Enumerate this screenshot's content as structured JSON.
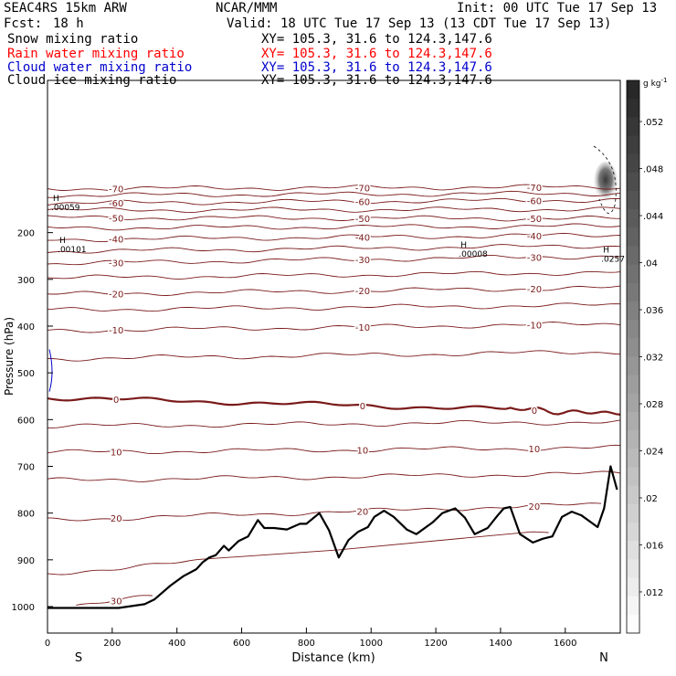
{
  "header": {
    "model": "SEAC4RS 15km ARW",
    "org": "NCAR/MMM",
    "init": "Init: 00 UTC Tue 17 Sep 13",
    "fcst_label": "Fcst:",
    "fcst_value": "18 h",
    "valid": "Valid: 18 UTC Tue 17 Sep 13 (13 CDT Tue 17 Sep 13)"
  },
  "fields": [
    {
      "label": "Snow mixing ratio",
      "xy": "XY= 105.3, 31.6 to 124.3,147.6",
      "color": "#000000"
    },
    {
      "label": "Rain water mixing ratio",
      "xy": "XY= 105.3, 31.6 to 124.3,147.6",
      "color": "#ff0000"
    },
    {
      "label": "Cloud water mixing ratio",
      "xy": "XY= 105.3, 31.6 to 124.3,147.6",
      "color": "#0000cc"
    },
    {
      "label": "Cloud ice mixing ratio",
      "xy": "XY= 105.3, 31.6 to 124.3,147.6",
      "color": "#000000"
    }
  ],
  "chart_data": {
    "type": "contour",
    "xlabel": "Distance (km)",
    "ylabel": "Pressure (hPa)",
    "xlim": [
      0,
      1770
    ],
    "ylim": [
      1050,
      100
    ],
    "x_ticks": [
      0,
      200,
      400,
      600,
      800,
      1000,
      1200,
      1400,
      1600
    ],
    "y_ticks": [
      200,
      300,
      400,
      500,
      600,
      700,
      800,
      900,
      1000
    ],
    "end_labels": {
      "left": "S",
      "right": "N"
    },
    "contour_color": "#7a1a1a",
    "temperature_contours": [
      {
        "value": -70,
        "label": "-70",
        "p_left": 106,
        "p_right": 102
      },
      {
        "value": -65,
        "p_left": 120,
        "p_right": 116
      },
      {
        "value": -60,
        "label": "-60",
        "p_left": 137,
        "p_right": 130
      },
      {
        "value": -55,
        "p_left": 152,
        "p_right": 150
      },
      {
        "value": -50,
        "label": "-50",
        "p_left": 168,
        "p_right": 170
      },
      {
        "value": -45,
        "p_left": 190,
        "p_right": 186
      },
      {
        "value": -40,
        "label": "-40",
        "p_left": 215,
        "p_right": 205
      },
      {
        "value": -35,
        "p_left": 240,
        "p_right": 228
      },
      {
        "value": -30,
        "label": "-30",
        "p_left": 266,
        "p_right": 250
      },
      {
        "value": -25,
        "p_left": 297,
        "p_right": 285
      },
      {
        "value": -20,
        "label": "-20",
        "p_left": 332,
        "p_right": 318
      },
      {
        "value": -15,
        "p_left": 365,
        "p_right": 355
      },
      {
        "value": -10,
        "label": "-10",
        "p_left": 410,
        "p_right": 395
      },
      {
        "value": -5,
        "p_left": 470,
        "p_right": 455
      },
      {
        "value": 0,
        "label": "0",
        "p_left": 553,
        "p_right": 584,
        "bold": true
      },
      {
        "value": 5,
        "p_left": 614,
        "p_right": 605
      },
      {
        "value": 10,
        "label": "10",
        "p_left": 670,
        "p_right": 660
      },
      {
        "value": 15,
        "p_left": 730,
        "p_right": 715
      },
      {
        "value": 20,
        "label": "20",
        "p_left": 815,
        "p_right": 780
      },
      {
        "value": 25,
        "p_left": 930,
        "p_right": 830
      },
      {
        "value": 30,
        "label": "30",
        "p_left": 1003,
        "p_right": 870
      }
    ],
    "terrain_surface": {
      "distance_km": [
        0,
        220,
        300,
        330,
        380,
        420,
        460,
        480,
        500,
        520,
        545,
        560,
        590,
        620,
        650,
        670,
        700,
        740,
        780,
        800,
        840,
        870,
        900,
        930,
        960,
        990,
        1010,
        1040,
        1070,
        1110,
        1140,
        1190,
        1220,
        1260,
        1290,
        1320,
        1360,
        1390,
        1410,
        1430,
        1460,
        1500,
        1530,
        1560,
        1590,
        1620,
        1650,
        1680,
        1700,
        1720,
        1740,
        1760
      ],
      "pressure_hpa": [
        1003,
        1003,
        995,
        985,
        955,
        935,
        920,
        905,
        895,
        890,
        870,
        880,
        860,
        850,
        815,
        832,
        832,
        835,
        823,
        823,
        800,
        837,
        895,
        858,
        840,
        830,
        808,
        795,
        808,
        835,
        845,
        820,
        800,
        790,
        810,
        845,
        832,
        806,
        790,
        787,
        845,
        863,
        855,
        850,
        808,
        797,
        805,
        820,
        830,
        790,
        700,
        750
      ]
    },
    "maxima": [
      {
        "label": "H",
        "value": ".00059",
        "x_km": 0,
        "p_hpa": 150
      },
      {
        "label": "H",
        "value": ".00101",
        "x_km": 20,
        "p_hpa": 240
      },
      {
        "label": "H",
        "value": ".00008",
        "x_km": 1260,
        "p_hpa": 250
      },
      {
        "label": "H",
        "value": ".0257",
        "x_km": 1700,
        "p_hpa": 260
      }
    ],
    "colorbar": {
      "unit": "g kg",
      "unit_exp": "-1",
      "ticks": [
        ".052",
        ".048",
        ".044",
        ".04",
        ".036",
        ".032",
        ".028",
        ".024",
        ".02",
        ".016",
        ".012"
      ],
      "tick_values": [
        0.052,
        0.048,
        0.044,
        0.04,
        0.036,
        0.032,
        0.028,
        0.024,
        0.02,
        0.016,
        0.012
      ]
    }
  }
}
